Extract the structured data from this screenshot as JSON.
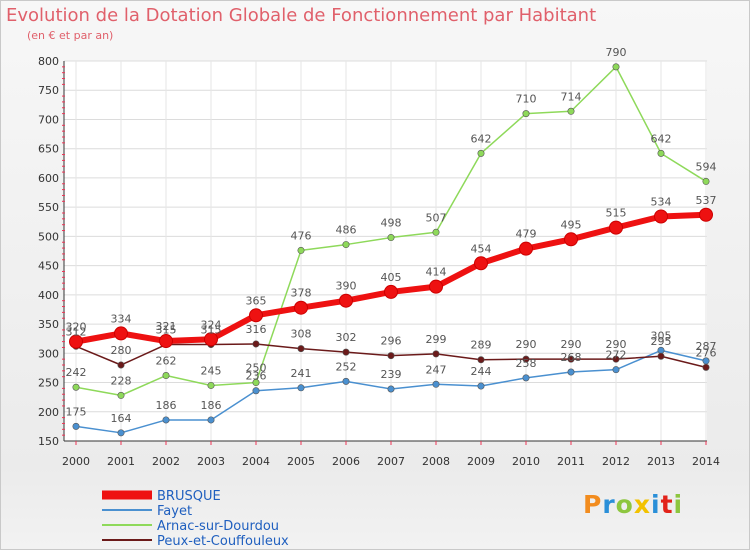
{
  "header": {
    "title": "Evolution de la Dotation Globale de Fonctionnement par Habitant",
    "subtitle": "(en € et par an)"
  },
  "brand": {
    "letters": [
      "P",
      "r",
      "o",
      "x",
      "i",
      "t",
      "i"
    ],
    "colors": [
      "#f28c1e",
      "#2a8fd8",
      "#8dc63f",
      "#f2c200",
      "#2a8fd8",
      "#e2231a",
      "#8dc63f"
    ]
  },
  "chart_data": {
    "type": "line",
    "x": [
      "2000",
      "2001",
      "2002",
      "2003",
      "2004",
      "2005",
      "2006",
      "2007",
      "2008",
      "2009",
      "2010",
      "2011",
      "2012",
      "2013",
      "2014"
    ],
    "ylim": [
      150,
      800
    ],
    "yticks": [
      150,
      200,
      250,
      300,
      350,
      400,
      450,
      500,
      550,
      600,
      650,
      700,
      750,
      800
    ],
    "grid": true,
    "legend_position": "bottom-left",
    "series": [
      {
        "name": "BRUSQUE",
        "color": "#ee1111",
        "values": [
          320,
          334,
          321,
          324,
          365,
          378,
          390,
          405,
          414,
          454,
          479,
          495,
          515,
          534,
          537
        ]
      },
      {
        "name": "Fayet",
        "color": "#4a90d0",
        "values": [
          175,
          164,
          186,
          186,
          236,
          241,
          252,
          239,
          247,
          244,
          258,
          268,
          272,
          305,
          287
        ]
      },
      {
        "name": "Arnac-sur-Dourdou",
        "color": "#8ed95a",
        "values": [
          242,
          228,
          262,
          245,
          250,
          476,
          486,
          498,
          507,
          642,
          710,
          714,
          790,
          642,
          594
        ]
      },
      {
        "name": "Peux-et-Couffouleux",
        "color": "#6b1a1a",
        "values": [
          312,
          280,
          315,
          315,
          316,
          308,
          302,
          296,
          299,
          289,
          290,
          290,
          290,
          295,
          276
        ]
      }
    ]
  }
}
